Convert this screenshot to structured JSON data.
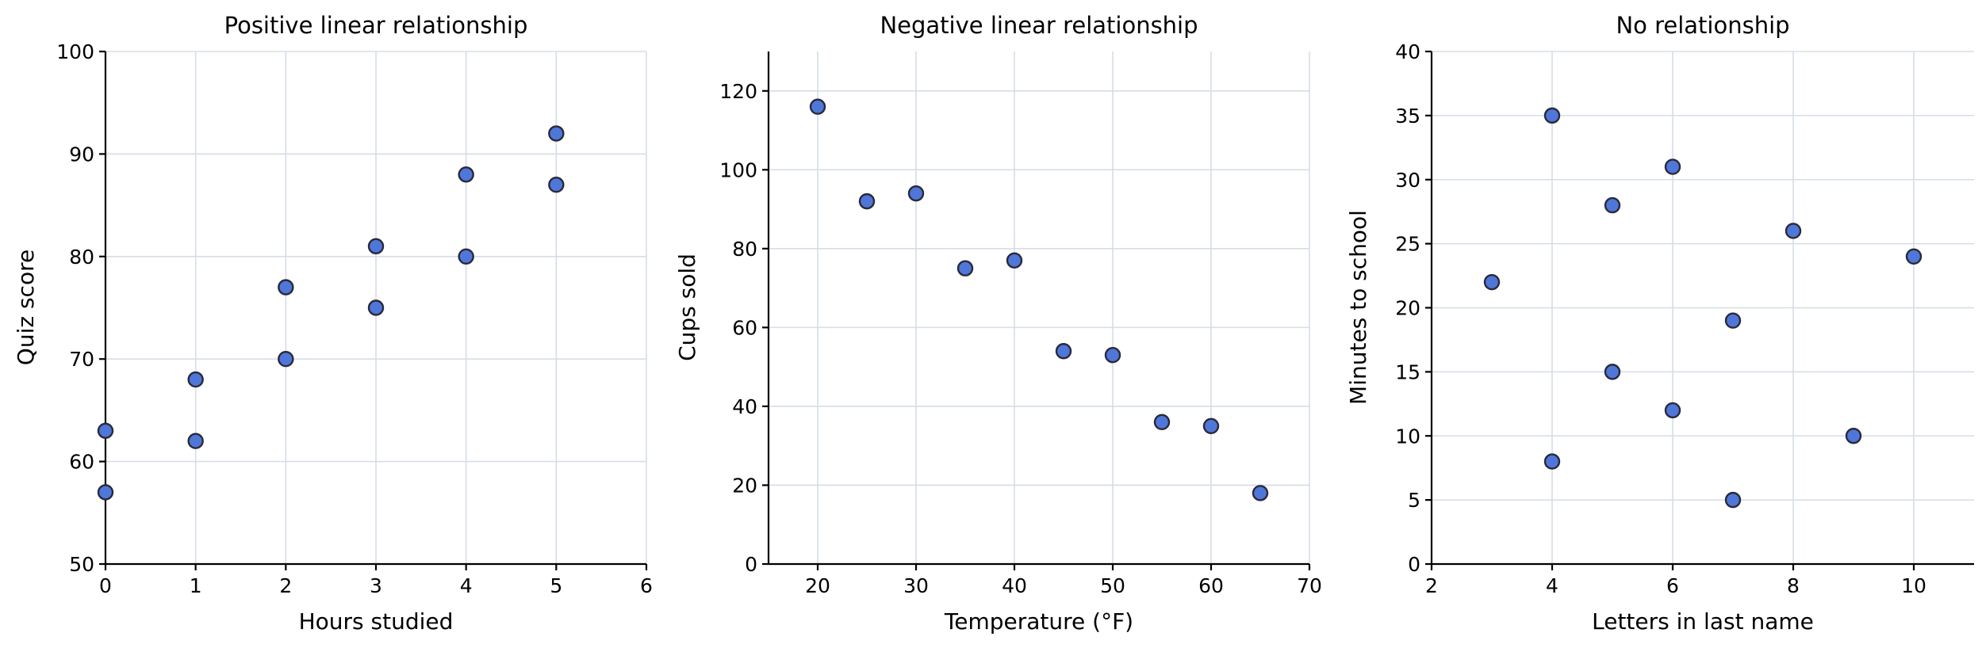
{
  "marker_fill": "#4f77d9",
  "marker_edge": "#2a2a3a",
  "grid_color": "#d5dde6",
  "chart_data": [
    {
      "type": "scatter",
      "title": "Positive linear relationship",
      "xlabel": "Hours studied",
      "ylabel": "Quiz score",
      "xlim": [
        0,
        6
      ],
      "ylim": [
        50,
        100
      ],
      "xticks": [
        0,
        1,
        2,
        3,
        4,
        5,
        6
      ],
      "yticks": [
        50,
        60,
        70,
        80,
        90,
        100
      ],
      "grid": true,
      "points": [
        {
          "x": 0,
          "y": 57
        },
        {
          "x": 0,
          "y": 63
        },
        {
          "x": 1,
          "y": 62
        },
        {
          "x": 1,
          "y": 68
        },
        {
          "x": 2,
          "y": 70
        },
        {
          "x": 2,
          "y": 77
        },
        {
          "x": 3,
          "y": 75
        },
        {
          "x": 3,
          "y": 81
        },
        {
          "x": 4,
          "y": 80
        },
        {
          "x": 4,
          "y": 88
        },
        {
          "x": 5,
          "y": 87
        },
        {
          "x": 5,
          "y": 92
        }
      ]
    },
    {
      "type": "scatter",
      "title": "Negative linear relationship",
      "xlabel": "Temperature (°F)",
      "ylabel": "Cups sold",
      "xlim": [
        15,
        70
      ],
      "ylim": [
        0,
        130
      ],
      "xticks": [
        20,
        30,
        40,
        50,
        60,
        70
      ],
      "yticks": [
        0,
        20,
        40,
        60,
        80,
        100,
        120
      ],
      "grid": true,
      "points": [
        {
          "x": 20,
          "y": 116
        },
        {
          "x": 25,
          "y": 92
        },
        {
          "x": 30,
          "y": 94
        },
        {
          "x": 35,
          "y": 75
        },
        {
          "x": 40,
          "y": 77
        },
        {
          "x": 45,
          "y": 54
        },
        {
          "x": 50,
          "y": 53
        },
        {
          "x": 55,
          "y": 36
        },
        {
          "x": 60,
          "y": 35
        },
        {
          "x": 65,
          "y": 18
        }
      ]
    },
    {
      "type": "scatter",
      "title": "No relationship",
      "xlabel": "Letters in last name",
      "ylabel": "Minutes to school",
      "xlim": [
        2,
        11
      ],
      "ylim": [
        0,
        40
      ],
      "xticks": [
        2,
        4,
        6,
        8,
        10
      ],
      "yticks": [
        0,
        5,
        10,
        15,
        20,
        25,
        30,
        35,
        40
      ],
      "grid": true,
      "points": [
        {
          "x": 3,
          "y": 22
        },
        {
          "x": 4,
          "y": 35
        },
        {
          "x": 4,
          "y": 8
        },
        {
          "x": 5,
          "y": 28
        },
        {
          "x": 5,
          "y": 15
        },
        {
          "x": 6,
          "y": 31
        },
        {
          "x": 6,
          "y": 12
        },
        {
          "x": 7,
          "y": 19
        },
        {
          "x": 7,
          "y": 5
        },
        {
          "x": 8,
          "y": 26
        },
        {
          "x": 9,
          "y": 10
        },
        {
          "x": 10,
          "y": 24
        }
      ]
    }
  ]
}
